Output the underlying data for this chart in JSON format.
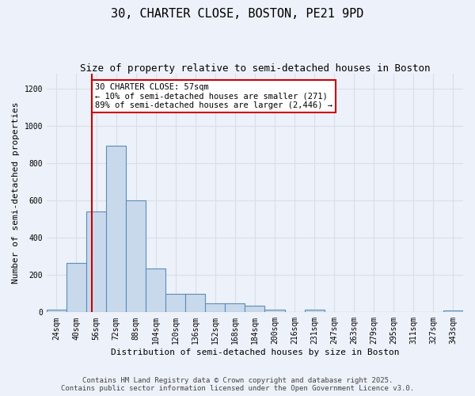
{
  "title": "30, CHARTER CLOSE, BOSTON, PE21 9PD",
  "subtitle": "Size of property relative to semi-detached houses in Boston",
  "xlabel": "Distribution of semi-detached houses by size in Boston",
  "ylabel": "Number of semi-detached properties",
  "categories": [
    "24sqm",
    "40sqm",
    "56sqm",
    "72sqm",
    "88sqm",
    "104sqm",
    "120sqm",
    "136sqm",
    "152sqm",
    "168sqm",
    "184sqm",
    "200sqm",
    "216sqm",
    "231sqm",
    "247sqm",
    "263sqm",
    "279sqm",
    "295sqm",
    "311sqm",
    "327sqm",
    "343sqm"
  ],
  "values": [
    15,
    265,
    540,
    895,
    600,
    235,
    100,
    100,
    50,
    50,
    35,
    15,
    0,
    15,
    0,
    0,
    0,
    0,
    0,
    0,
    10
  ],
  "bar_color": "#c9d9ec",
  "bar_edge_color": "#5b8db8",
  "bar_edge_width": 0.8,
  "vline_x": 1.78,
  "vline_color": "#cc0000",
  "annotation_text": "30 CHARTER CLOSE: 57sqm\n← 10% of semi-detached houses are smaller (271)\n89% of semi-detached houses are larger (2,446) →",
  "annotation_box_color": "#ffffff",
  "annotation_box_edge": "#cc0000",
  "ylim": [
    0,
    1280
  ],
  "yticks": [
    0,
    200,
    400,
    600,
    800,
    1000,
    1200
  ],
  "footer_line1": "Contains HM Land Registry data © Crown copyright and database right 2025.",
  "footer_line2": "Contains public sector information licensed under the Open Government Licence v3.0.",
  "bg_color": "#edf1f9",
  "grid_color": "#d8dfe8",
  "title_fontsize": 11,
  "subtitle_fontsize": 9,
  "tick_fontsize": 7,
  "ylabel_fontsize": 8,
  "xlabel_fontsize": 8,
  "footer_fontsize": 6.5,
  "annot_fontsize": 7.5
}
